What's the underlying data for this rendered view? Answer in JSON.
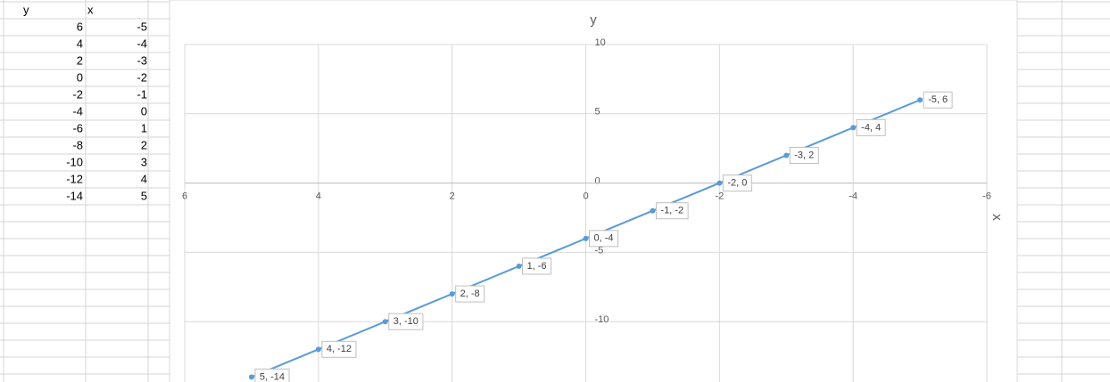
{
  "table": {
    "header": [
      "y",
      "x"
    ],
    "rows": [
      [
        6,
        -5
      ],
      [
        4,
        -4
      ],
      [
        2,
        -3
      ],
      [
        0,
        -2
      ],
      [
        -2,
        -1
      ],
      [
        -4,
        0
      ],
      [
        -6,
        1
      ],
      [
        -8,
        2
      ],
      [
        -10,
        3
      ],
      [
        -12,
        4
      ],
      [
        -14,
        5
      ]
    ]
  },
  "chart_data": {
    "type": "line",
    "ylabel": "y",
    "xlabel": "x",
    "x": [
      -5,
      -4,
      -3,
      -2,
      -1,
      0,
      1,
      2,
      3,
      4,
      5
    ],
    "values": [
      6,
      4,
      2,
      0,
      -2,
      -4,
      -6,
      -8,
      -10,
      -12,
      -14
    ],
    "value_labels": [
      "-5, 6",
      "-4, 4",
      "-3, 2",
      "-2, 0",
      "-1, -2",
      "0, -4",
      "1, -6",
      "2, -8",
      "3, -10",
      "4, -12",
      "5, -14"
    ],
    "color": "#5b9bd5",
    "xlim": [
      6,
      -6
    ],
    "xticks": [
      6,
      4,
      2,
      0,
      -2,
      -4,
      -6
    ],
    "ylim": [
      -15,
      10
    ],
    "yticks": [
      -10,
      -5,
      0,
      5,
      10
    ],
    "grid": true
  }
}
